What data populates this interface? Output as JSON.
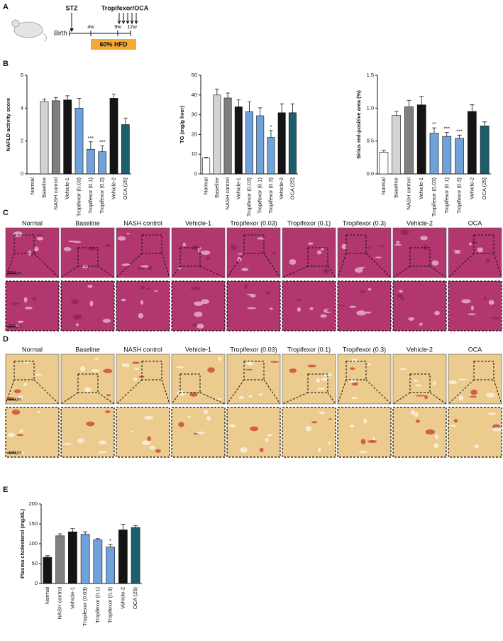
{
  "panel_labels": [
    "A",
    "B",
    "C",
    "D",
    "E"
  ],
  "timeline": {
    "injection": "STZ",
    "treatment": "Tropifexor/OCA",
    "start": "Birth",
    "ticks": [
      "4w",
      "9w",
      "12w"
    ],
    "diet": "60% HFD"
  },
  "chart_data": [
    {
      "type": "bar",
      "ylabel": "NAFLD activity score",
      "categories": [
        "Normal",
        "Baseline",
        "NASH control",
        "Vehicle-1",
        "Tropifexor (0.03)",
        "Tropifexor (0.1)",
        "Tropifexor (0.3)",
        "Vehicle-2",
        "OCA (25)"
      ],
      "values": [
        0,
        4.4,
        4.45,
        4.5,
        4.0,
        1.5,
        1.35,
        4.6,
        3.0
      ],
      "errors": [
        0,
        0.15,
        0.2,
        0.25,
        0.6,
        0.45,
        0.35,
        0.25,
        0.4
      ],
      "colors": [
        "#ffffff",
        "#d3d3d3",
        "#7f7f7f",
        "#141414",
        "#6fa1da",
        "#6fa1da",
        "#6fa1da",
        "#141414",
        "#1d5e6d"
      ],
      "significance": [
        null,
        null,
        null,
        null,
        null,
        "***",
        "***",
        null,
        null
      ],
      "ylim": [
        0,
        6
      ],
      "yticks": [
        0,
        2,
        4,
        6
      ]
    },
    {
      "type": "bar",
      "ylabel": "TG (mg/g liver)",
      "categories": [
        "Normal",
        "Baseline",
        "NASH control",
        "Vehicle-1",
        "Tropifexor (0.03)",
        "Tropifexor (0.1)",
        "Tropifexor (0.3)",
        "Vehicle-2",
        "OCA (25)"
      ],
      "values": [
        8,
        40,
        38.5,
        34,
        31.5,
        29.5,
        18.5,
        31,
        31
      ],
      "errors": [
        0.5,
        3,
        2.5,
        3.5,
        5,
        4,
        3.5,
        4.5,
        4.5
      ],
      "colors": [
        "#ffffff",
        "#d3d3d3",
        "#7f7f7f",
        "#141414",
        "#6fa1da",
        "#6fa1da",
        "#6fa1da",
        "#141414",
        "#1d5e6d"
      ],
      "significance": [
        null,
        null,
        null,
        null,
        null,
        null,
        "*",
        null,
        null
      ],
      "ylim": [
        0,
        50
      ],
      "yticks": [
        0,
        10,
        20,
        30,
        40,
        50
      ]
    },
    {
      "type": "bar",
      "ylabel": "Sirius red-positive area (%)",
      "categories": [
        "Normal",
        "Baseline",
        "NASH control",
        "Vehicle-1",
        "Tropifexor (0.03)",
        "Tropifexor (0.1)",
        "Tropifexor (0.3)",
        "Vehicle-2",
        "OCA (25)"
      ],
      "values": [
        0.33,
        0.89,
        1.02,
        1.05,
        0.62,
        0.57,
        0.54,
        0.95,
        0.73
      ],
      "errors": [
        0.03,
        0.06,
        0.1,
        0.13,
        0.08,
        0.06,
        0.05,
        0.1,
        0.06
      ],
      "colors": [
        "#ffffff",
        "#d3d3d3",
        "#7f7f7f",
        "#141414",
        "#6fa1da",
        "#6fa1da",
        "#6fa1da",
        "#141414",
        "#1d5e6d"
      ],
      "significance": [
        null,
        null,
        null,
        null,
        "**",
        "***",
        "***",
        null,
        null
      ],
      "ylim": [
        0,
        1.5
      ],
      "yticks": [
        {
          "value": 0,
          "label": "0.0"
        },
        0.5,
        {
          "value": 1,
          "label": "1.0"
        },
        1.5
      ]
    },
    {
      "type": "bar",
      "ylabel": "Plasma cholesterol (mg/dL)",
      "categories": [
        "Normal",
        "NASH control",
        "Vehicle-1",
        "Tropifexor (0.03)",
        "Tropifexor (0.1)",
        "Tropifexor (0.3)",
        "Vehicle-2",
        "OCA (25)"
      ],
      "values": [
        66,
        120,
        130,
        124,
        110,
        92,
        135,
        141
      ],
      "errors": [
        4,
        5,
        8,
        6,
        3,
        6,
        14,
        5
      ],
      "colors": [
        "#141414",
        "#7f7f7f",
        "#141414",
        "#6fa1da",
        "#6fa1da",
        "#6fa1da",
        "#141414",
        "#1d5e6d"
      ],
      "significance": [
        null,
        null,
        null,
        null,
        null,
        "*",
        null,
        null
      ],
      "ylim": [
        0,
        200
      ],
      "yticks": [
        0,
        50,
        100,
        150,
        200
      ]
    }
  ],
  "histology": [
    {
      "columns": [
        "Normal",
        "Baseline",
        "NASH control",
        "Vehicle-1",
        "Tropifexor (0.03)",
        "Tropifexor (0.1)",
        "Tropifexor (0.3)",
        "Vehicle-2",
        "OCA"
      ],
      "scale_bars": [
        "300μm",
        "100μm"
      ]
    },
    {
      "columns": [
        "Normal",
        "Baseline",
        "NASH control",
        "Vehicle-1",
        "Tropifexor (0.03)",
        "Tropifexor (0.1)",
        "Tropifexor (0.3)",
        "Vehicle-2",
        "OCA"
      ],
      "scale_bars": [
        "300μm",
        "100μm"
      ]
    }
  ]
}
